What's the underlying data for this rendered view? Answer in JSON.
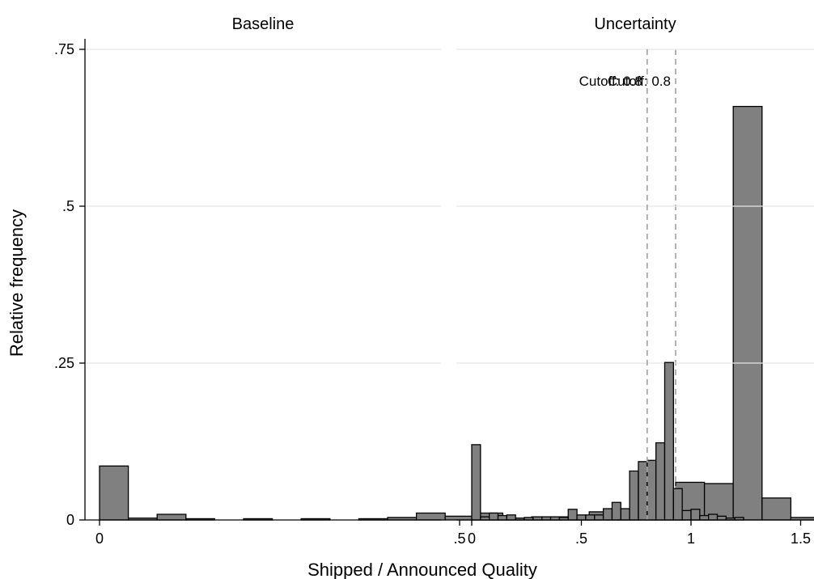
{
  "chart_data": [
    {
      "type": "bar",
      "panel_title": "Baseline",
      "bin_width": 0.04,
      "x_bin_starts": [
        0,
        0.04,
        0.08,
        0.12,
        0.16,
        0.2,
        0.24,
        0.28,
        0.32,
        0.36,
        0.4,
        0.44,
        0.48,
        0.52,
        0.56,
        0.6,
        0.64,
        0.68,
        0.72,
        0.76,
        0.8,
        0.84,
        0.88,
        0.92,
        0.96,
        1.0,
        1.04,
        1.08,
        1.12
      ],
      "values": [
        0.086,
        0.003,
        0.009,
        0.002,
        0.0,
        0.002,
        0.0,
        0.002,
        0.0,
        0.002,
        0.004,
        0.011,
        0.006,
        0.011,
        0.003,
        0.005,
        0.005,
        0.013,
        0.009,
        0.017,
        0.06,
        0.058,
        0.659,
        0.035,
        0.004,
        0.005,
        0.0,
        0.0,
        0.0
      ],
      "cutoff": 0.8,
      "cutoff_label": "Cutoff: 0.8",
      "xlim": [
        -0.08,
        1.55
      ],
      "ylim": [
        0,
        0.75
      ]
    },
    {
      "type": "bar",
      "panel_title": "Uncertainty",
      "bin_width": 0.04,
      "x_bin_starts": [
        0,
        0.04,
        0.08,
        0.12,
        0.16,
        0.2,
        0.24,
        0.28,
        0.32,
        0.36,
        0.4,
        0.44,
        0.48,
        0.52,
        0.56,
        0.6,
        0.64,
        0.68,
        0.72,
        0.76,
        0.8,
        0.84,
        0.88,
        0.92,
        0.96,
        1.0,
        1.04,
        1.08,
        1.12,
        1.16,
        1.2,
        1.24,
        1.28,
        1.32
      ],
      "values": [
        0.12,
        0.005,
        0.011,
        0.007,
        0.008,
        0.003,
        0.004,
        0.005,
        0.005,
        0.005,
        0.004,
        0.017,
        0.008,
        0.008,
        0.008,
        0.018,
        0.028,
        0.018,
        0.078,
        0.093,
        0.095,
        0.123,
        0.251,
        0.05,
        0.015,
        0.017,
        0.007,
        0.009,
        0.006,
        0.003,
        0.004,
        0.0,
        0.0,
        0.0
      ],
      "cutoff": 0.8,
      "cutoff_label": "Cutoff: 0.8",
      "xlim": [
        -0.08,
        1.55
      ],
      "ylim": [
        0,
        0.75
      ]
    }
  ],
  "axes": {
    "xlabel": "Shipped / Announced Quality",
    "ylabel": "Relative frequency",
    "y_ticks": [
      {
        "value": 0,
        "label": "0"
      },
      {
        "value": 0.25,
        "label": ".25"
      },
      {
        "value": 0.5,
        "label": ".5"
      },
      {
        "value": 0.75,
        "label": ".75"
      }
    ],
    "x_ticks": [
      {
        "value": 0,
        "label": "0"
      },
      {
        "value": 0.5,
        "label": ".5"
      },
      {
        "value": 1,
        "label": "1"
      },
      {
        "value": 1.5,
        "label": "1.5"
      }
    ],
    "grid": true
  },
  "colors": {
    "bar_fill": "#808080",
    "bar_stroke": "#000000",
    "grid": "#e6e6e6",
    "cutoff_line": "#a0a0a0",
    "axis": "#000000"
  }
}
